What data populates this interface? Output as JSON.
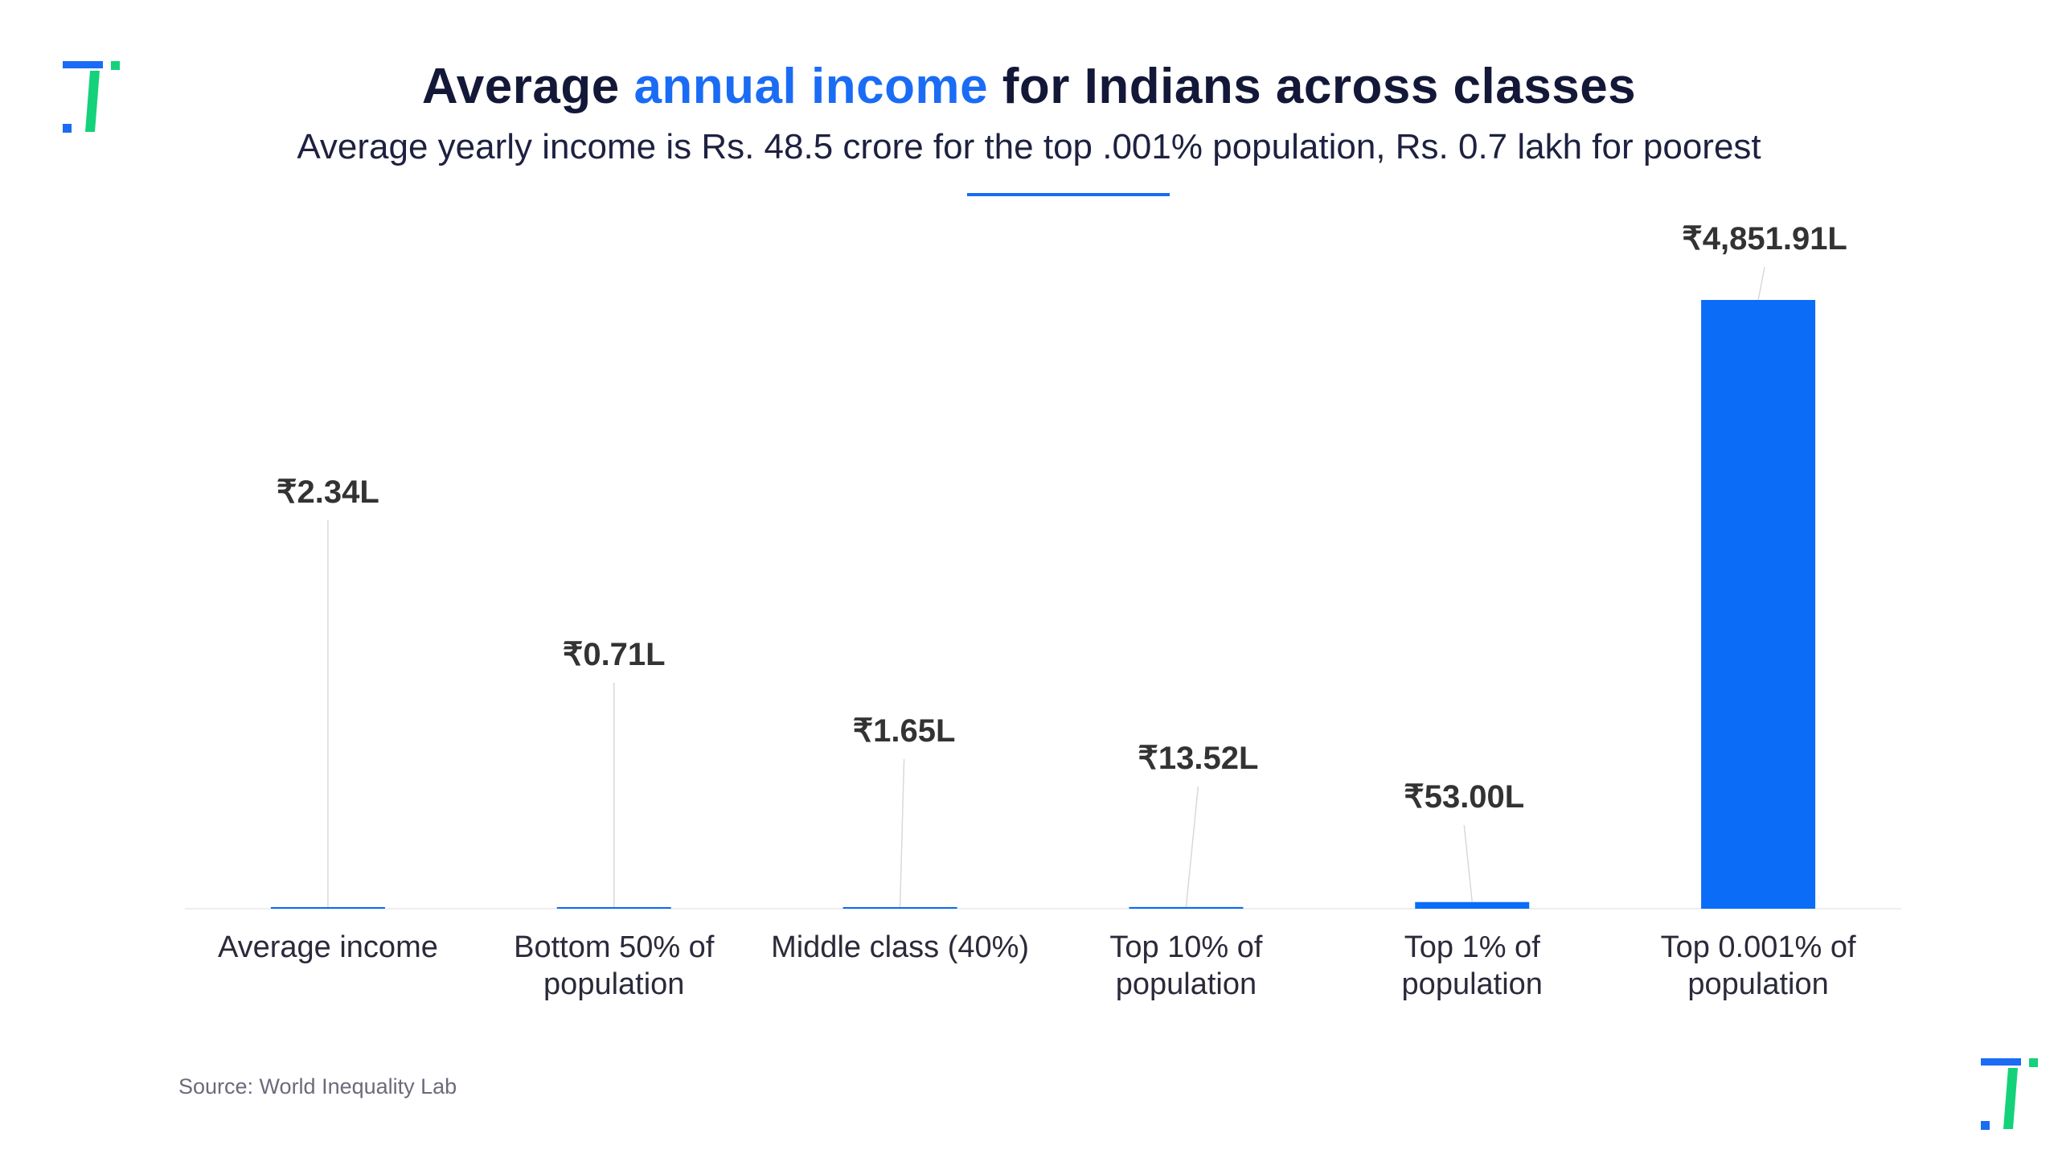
{
  "title": {
    "part1": "Average ",
    "highlight": "annual income",
    "part2": " for Indians across classes"
  },
  "subtitle": "Average yearly income is Rs. 48.5 crore for the top .001% population, Rs. 0.7 lakh for poorest",
  "source": "Source: World Inequality Lab",
  "colors": {
    "bar": "#0a6cf7",
    "title_accent": "#1a6cf5",
    "logo_blue": "#1a6cf5",
    "logo_green": "#14d27a"
  },
  "icons": {
    "top_logo": "brand-logo-icon",
    "bottom_logo": "brand-logo-icon"
  },
  "chart_data": {
    "type": "bar",
    "categories": [
      [
        "Average income"
      ],
      [
        "Bottom 50% of",
        "population"
      ],
      [
        "Middle class (40%)"
      ],
      [
        "Top 10% of",
        "population"
      ],
      [
        "Top 1% of",
        "population"
      ],
      [
        "Top 0.001% of",
        "population"
      ]
    ],
    "values": [
      2.34,
      0.71,
      1.65,
      13.52,
      53.0,
      4851.91
    ],
    "data_labels": [
      "₹2.34L",
      "₹0.71L",
      "₹1.65L",
      "₹13.52L",
      "₹53.00L",
      "₹4,851.91L"
    ],
    "unit": "lakh rupees",
    "ylim": [
      0,
      4851.91
    ],
    "grid": false,
    "legend": "none"
  }
}
